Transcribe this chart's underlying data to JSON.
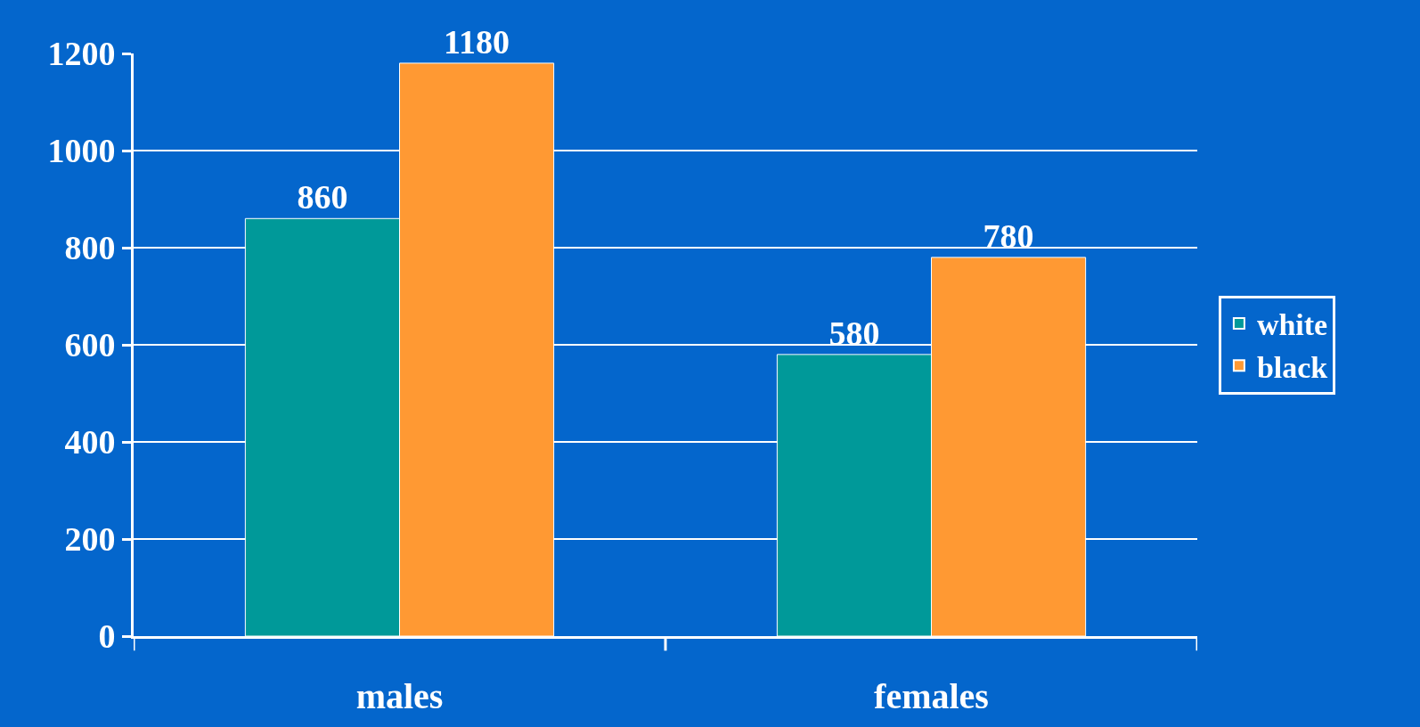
{
  "chart_data": {
    "type": "bar",
    "categories": [
      "males",
      "females"
    ],
    "series": [
      {
        "name": "white",
        "color": "#009999",
        "values": [
          860,
          580
        ]
      },
      {
        "name": "black",
        "color": "#ff9933",
        "values": [
          1180,
          780
        ]
      }
    ],
    "ylim": [
      0,
      1200
    ],
    "yticks": [
      0,
      200,
      400,
      600,
      800,
      1000,
      1200
    ],
    "grid": "y",
    "legend": "right",
    "data_labels": true
  }
}
